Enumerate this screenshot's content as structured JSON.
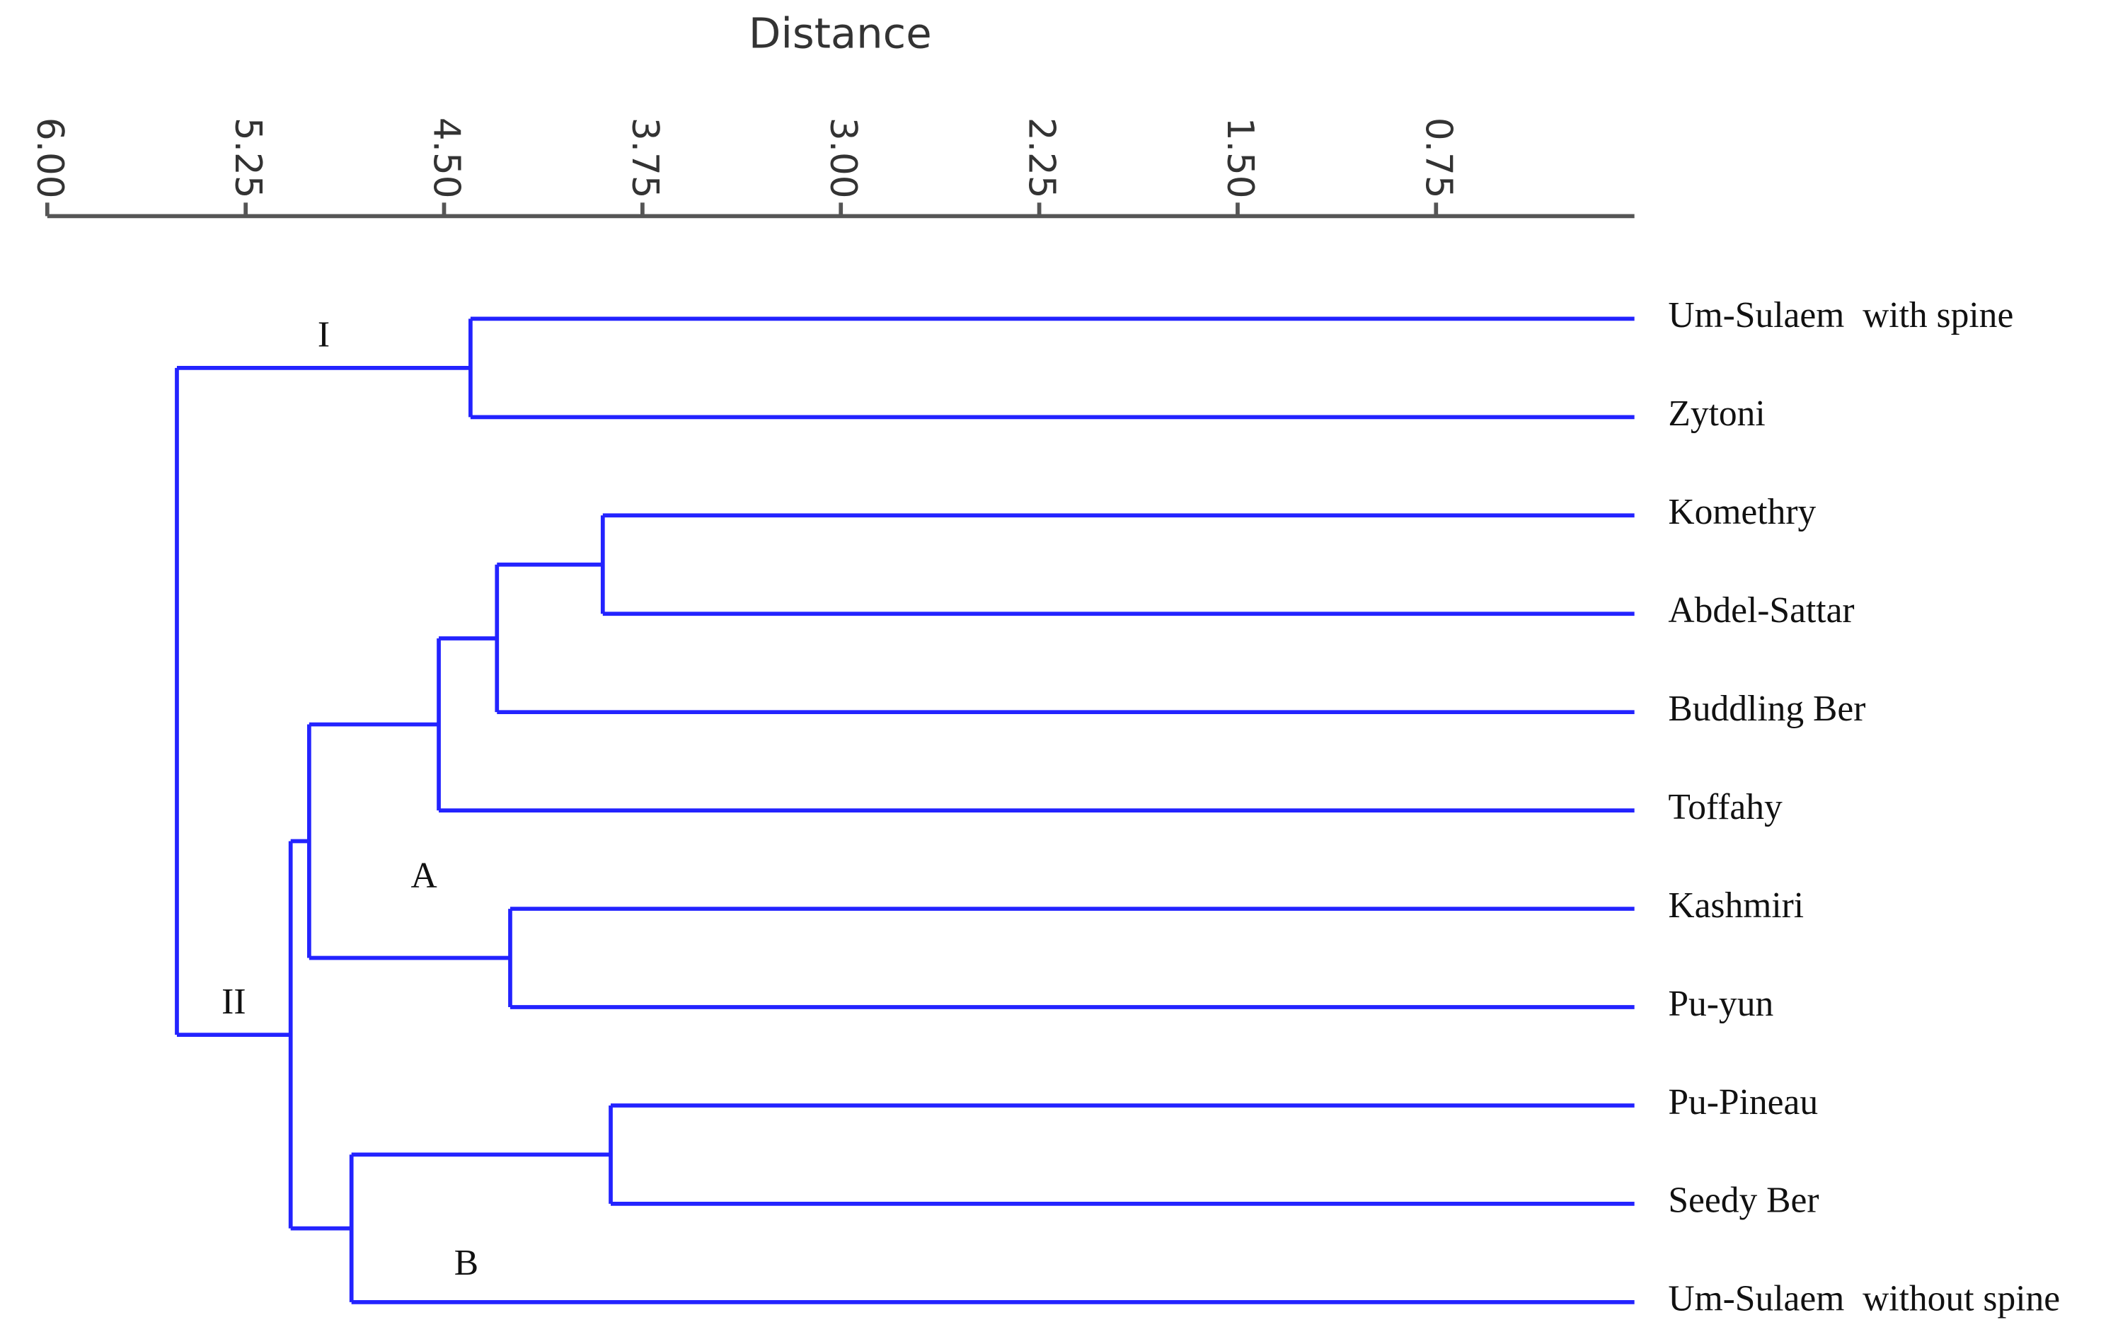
{
  "chart_data": {
    "type": "dendrogram",
    "xlabel": "Distance",
    "xlim": [
      6,
      0
    ],
    "xticks": [
      {
        "value": 6,
        "label": "6.00"
      },
      {
        "value": 5.25,
        "label": "5.25"
      },
      {
        "value": 4.5,
        "label": "4.50"
      },
      {
        "value": 3.75,
        "label": "3.75"
      },
      {
        "value": 3,
        "label": "3.00"
      },
      {
        "value": 2.25,
        "label": "2.25"
      },
      {
        "value": 1.5,
        "label": "1.50"
      },
      {
        "value": 0.75,
        "label": "0.75"
      }
    ],
    "color": "#2323ff",
    "tree": {
      "distance": 5.51,
      "children": [
        {
          "label": "I",
          "distance": 4.4,
          "children": [
            {
              "name": "Um-Sulaem  with spine"
            },
            {
              "name": "Zytoni"
            }
          ]
        },
        {
          "label": "II",
          "distance": 5.08,
          "children": [
            {
              "label": "A",
              "distance": 5.01,
              "children": [
                {
                  "distance": 4.52,
                  "children": [
                    {
                      "distance": 4.3,
                      "children": [
                        {
                          "distance": 3.9,
                          "children": [
                            {
                              "name": "Komethry"
                            },
                            {
                              "name": "Abdel-Sattar"
                            }
                          ]
                        },
                        {
                          "name": "Buddling Ber"
                        }
                      ]
                    },
                    {
                      "name": "Toffahy"
                    }
                  ]
                },
                {
                  "distance": 4.25,
                  "children": [
                    {
                      "name": "Kashmiri"
                    },
                    {
                      "name": "Pu-yun"
                    }
                  ]
                }
              ]
            },
            {
              "label": "B",
              "distance": 4.85,
              "children": [
                {
                  "distance": 3.87,
                  "children": [
                    {
                      "name": "Pu-Pineau"
                    },
                    {
                      "name": "Seedy Ber"
                    }
                  ]
                },
                {
                  "name": "Um-Sulaem  without spine"
                }
              ]
            }
          ]
        }
      ]
    }
  }
}
